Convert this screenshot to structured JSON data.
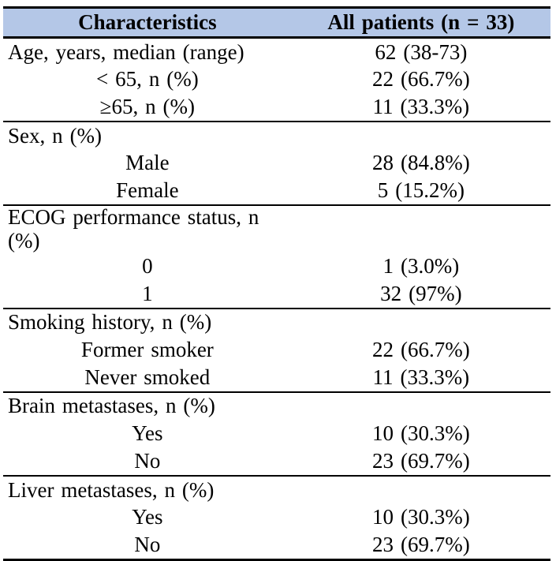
{
  "table": {
    "title_semantic": "patient-characteristics-table",
    "header_bg": "#b4c7e7",
    "border_color": "#000000",
    "header": {
      "col1": "Characteristics",
      "col2": "All patients (n = 33)"
    },
    "sections": [
      {
        "rows": [
          {
            "label": "Age, years, median (range)",
            "value": "62 (38-73)"
          },
          {
            "label": "< 65, n (%)",
            "value": "22 (66.7%)"
          },
          {
            "label": "≥65, n (%)",
            "value": "11 (33.3%)"
          }
        ]
      },
      {
        "rows": [
          {
            "label": "Sex, n (%)",
            "value": ""
          },
          {
            "label": "Male",
            "value": "28 (84.8%)"
          },
          {
            "label": "Female",
            "value": "5 (15.2%)"
          }
        ]
      },
      {
        "rows": [
          {
            "label": "ECOG performance status, n (%)",
            "value": ""
          },
          {
            "label": "0",
            "value": "1 (3.0%)"
          },
          {
            "label": "1",
            "value": "32 (97%)"
          }
        ]
      },
      {
        "rows": [
          {
            "label": "Smoking history, n (%)",
            "value": ""
          },
          {
            "label": "Former smoker",
            "value": "22 (66.7%)"
          },
          {
            "label": "Never smoked",
            "value": "11 (33.3%)"
          }
        ]
      },
      {
        "rows": [
          {
            "label": "Brain metastases, n (%)",
            "value": ""
          },
          {
            "label": "Yes",
            "value": "10 (30.3%)"
          },
          {
            "label": "No",
            "value": "23 (69.7%)"
          }
        ]
      },
      {
        "rows": [
          {
            "label": "Liver metastases, n (%)",
            "value": ""
          },
          {
            "label": "Yes",
            "value": "10 (30.3%)"
          },
          {
            "label": "No",
            "value": "23 (69.7%)"
          }
        ]
      }
    ]
  }
}
